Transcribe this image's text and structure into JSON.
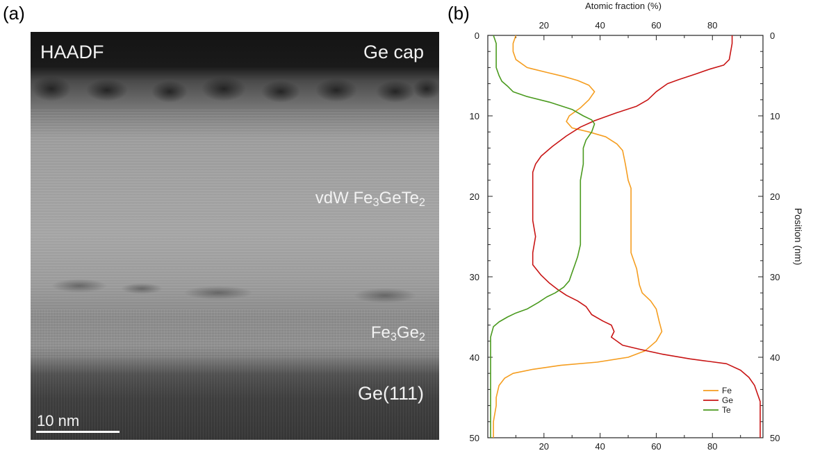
{
  "panel_a": {
    "label": "(a)",
    "title": "HAADF",
    "annotations": {
      "ge_cap": "Ge cap",
      "vdw_prefix": "vdW Fe",
      "vdw_sub1": "3",
      "vdw_mid": "GeTe",
      "vdw_sub2": "2",
      "fe3ge2_prefix": "Fe",
      "fe3ge2_sub1": "3",
      "fe3ge2_mid": "Ge",
      "fe3ge2_sub2": "2",
      "substrate": "Ge(111)"
    },
    "scale_bar_label": "10 nm"
  },
  "panel_b": {
    "label": "(b)"
  },
  "chart_data": {
    "type": "line",
    "orientation": "vertical-profile",
    "xlabel": "Atomic fraction (%)",
    "ylabel": "Position (nm)",
    "xlim": [
      0,
      98
    ],
    "ylim": [
      50,
      0
    ],
    "x_ticks": [
      20,
      40,
      60,
      80
    ],
    "y_ticks": [
      0,
      10,
      20,
      30,
      40,
      50
    ],
    "grid": false,
    "legend_position": "bottom-right",
    "series": [
      {
        "name": "Fe",
        "color": "#f59d1f",
        "points": [
          [
            10,
            0
          ],
          [
            9,
            1
          ],
          [
            9,
            2
          ],
          [
            10,
            3
          ],
          [
            14,
            4
          ],
          [
            21,
            4.6
          ],
          [
            27,
            5.1
          ],
          [
            32,
            5.6
          ],
          [
            36,
            6.2
          ],
          [
            38,
            7
          ],
          [
            36,
            8
          ],
          [
            33,
            9
          ],
          [
            29,
            10
          ],
          [
            28,
            10.7
          ],
          [
            30,
            11.5
          ],
          [
            36,
            12
          ],
          [
            42,
            12.6
          ],
          [
            46,
            13.5
          ],
          [
            48,
            14.3
          ],
          [
            49,
            16
          ],
          [
            50,
            18
          ],
          [
            51,
            19
          ],
          [
            51,
            21
          ],
          [
            51,
            23
          ],
          [
            51,
            25
          ],
          [
            51,
            27
          ],
          [
            52,
            28
          ],
          [
            53,
            29
          ],
          [
            54,
            31
          ],
          [
            55,
            32
          ],
          [
            58,
            33
          ],
          [
            60,
            34
          ],
          [
            61,
            35.5
          ],
          [
            62,
            36.8
          ],
          [
            60,
            38
          ],
          [
            56,
            39.2
          ],
          [
            50,
            40
          ],
          [
            39,
            40.6
          ],
          [
            26,
            41
          ],
          [
            16,
            41.5
          ],
          [
            9,
            42
          ],
          [
            6,
            42.6
          ],
          [
            4,
            43.5
          ],
          [
            3,
            45
          ],
          [
            3,
            46
          ],
          [
            2,
            48
          ],
          [
            2,
            50
          ]
        ]
      },
      {
        "name": "Ge",
        "color": "#c81414",
        "points": [
          [
            87,
            0
          ],
          [
            87,
            1
          ],
          [
            86,
            3
          ],
          [
            84,
            3.7
          ],
          [
            79,
            4.2
          ],
          [
            74,
            4.8
          ],
          [
            68,
            5.5
          ],
          [
            64,
            6
          ],
          [
            60,
            7
          ],
          [
            57,
            8
          ],
          [
            53,
            8.8
          ],
          [
            46,
            9.6
          ],
          [
            38,
            10.6
          ],
          [
            33,
            11.4
          ],
          [
            28,
            12.5
          ],
          [
            23,
            13.8
          ],
          [
            19,
            15
          ],
          [
            17,
            16
          ],
          [
            16,
            17
          ],
          [
            16,
            19
          ],
          [
            16,
            21
          ],
          [
            16,
            23
          ],
          [
            17,
            25
          ],
          [
            16,
            27
          ],
          [
            16,
            28.5
          ],
          [
            19,
            29.8
          ],
          [
            22,
            30.8
          ],
          [
            25,
            31.6
          ],
          [
            28,
            32.3
          ],
          [
            32,
            33
          ],
          [
            35,
            33.7
          ],
          [
            37,
            34.7
          ],
          [
            41,
            35.5
          ],
          [
            44,
            36
          ],
          [
            45,
            36.8
          ],
          [
            44,
            37.5
          ],
          [
            48,
            38.5
          ],
          [
            54,
            39
          ],
          [
            62,
            39.6
          ],
          [
            72,
            40.2
          ],
          [
            85,
            40.8
          ],
          [
            90,
            41.6
          ],
          [
            93,
            42.5
          ],
          [
            95,
            43.5
          ],
          [
            96,
            44.5
          ],
          [
            97,
            45.5
          ],
          [
            97,
            47
          ],
          [
            97,
            48.5
          ],
          [
            97,
            50
          ]
        ]
      },
      {
        "name": "Te",
        "color": "#4a9a1e",
        "points": [
          [
            2,
            0
          ],
          [
            3,
            1
          ],
          [
            3,
            2
          ],
          [
            3,
            3
          ],
          [
            3,
            4
          ],
          [
            4,
            5
          ],
          [
            5,
            5.7
          ],
          [
            7,
            6.3
          ],
          [
            9,
            7
          ],
          [
            14,
            7.6
          ],
          [
            22,
            8.3
          ],
          [
            30,
            9.2
          ],
          [
            34,
            10
          ],
          [
            37,
            10.5
          ],
          [
            38,
            11
          ],
          [
            37,
            12
          ],
          [
            35,
            13
          ],
          [
            34,
            14
          ],
          [
            34,
            16
          ],
          [
            33,
            18
          ],
          [
            33,
            20
          ],
          [
            33,
            22
          ],
          [
            33,
            24
          ],
          [
            33,
            26
          ],
          [
            32,
            27.5
          ],
          [
            31,
            28.5
          ],
          [
            30,
            29.5
          ],
          [
            29,
            30.5
          ],
          [
            27,
            31.3
          ],
          [
            24,
            32
          ],
          [
            21,
            32.5
          ],
          [
            18,
            33.2
          ],
          [
            14,
            34
          ],
          [
            10,
            34.5
          ],
          [
            7,
            35
          ],
          [
            4,
            35.6
          ],
          [
            2,
            36.2
          ],
          [
            1,
            37.5
          ],
          [
            1,
            40
          ],
          [
            1,
            43
          ],
          [
            1,
            46
          ],
          [
            1,
            48
          ],
          [
            1,
            50
          ]
        ]
      }
    ]
  }
}
